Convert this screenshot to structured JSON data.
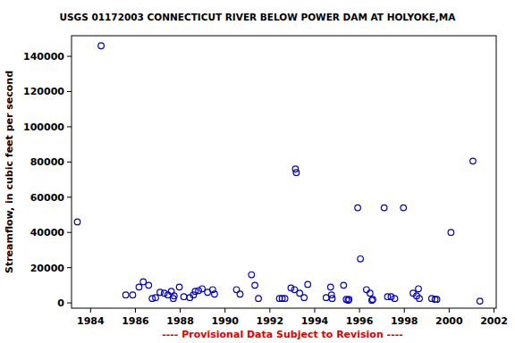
{
  "chart_data": {
    "type": "scatter",
    "title": "USGS 01172003 CONNECTICUT RIVER BELOW POWER DAM AT HOLYOKE,MA",
    "y_label": "Streamflow, in cubic feet per second",
    "annotation": "---- Provisional Data Subject to Revision ----",
    "x": [
      1983.41,
      1984.47,
      1985.57,
      1985.88,
      1986.16,
      1986.35,
      1986.59,
      1986.75,
      1986.9,
      1987.1,
      1987.29,
      1987.45,
      1987.6,
      1987.69,
      1987.73,
      1987.96,
      1988.16,
      1988.43,
      1988.59,
      1988.67,
      1988.82,
      1988.98,
      1989.22,
      1989.45,
      1989.53,
      1990.51,
      1990.67,
      1991.18,
      1991.33,
      1991.49,
      1992.43,
      1992.55,
      1992.67,
      1992.94,
      1993.1,
      1993.14,
      1993.18,
      1993.33,
      1993.53,
      1993.69,
      1994.51,
      1994.71,
      1994.75,
      1994.78,
      1995.29,
      1995.41,
      1995.49,
      1995.53,
      1995.92,
      1996.04,
      1996.31,
      1996.47,
      1996.55,
      1996.59,
      1997.1,
      1997.25,
      1997.41,
      1997.57,
      1997.96,
      1998.39,
      1998.55,
      1998.63,
      1998.67,
      1999.22,
      1999.37,
      1999.45,
      2000.08,
      2001.06,
      2001.37
    ],
    "values": [
      46000,
      146000,
      4500,
      4500,
      9000,
      12000,
      10000,
      2500,
      3000,
      6000,
      5500,
      4500,
      6500,
      2500,
      4000,
      9000,
      3500,
      3000,
      4500,
      6500,
      7000,
      8000,
      6000,
      7500,
      5000,
      7500,
      5000,
      16000,
      10000,
      2500,
      2500,
      2500,
      2500,
      8500,
      7500,
      76000,
      74000,
      5500,
      3000,
      10500,
      3000,
      9000,
      4500,
      2500,
      10000,
      2000,
      1500,
      2000,
      54000,
      25000,
      7500,
      5500,
      1500,
      2000,
      54000,
      3500,
      3500,
      2500,
      54000,
      5500,
      4000,
      8000,
      2500,
      2500,
      2000,
      2000,
      40000,
      80500,
      1000
    ],
    "color": "#0000cc",
    "marker": "open-circle",
    "xlim": [
      1983.15,
      2002.1
    ],
    "ylim": [
      -3000,
      151700
    ],
    "xticks": [
      1984,
      1986,
      1988,
      1990,
      1992,
      1994,
      1996,
      1998,
      2000,
      2002
    ],
    "yticks": [
      0,
      20000,
      40000,
      60000,
      80000,
      100000,
      120000,
      140000
    ],
    "grid": false
  }
}
